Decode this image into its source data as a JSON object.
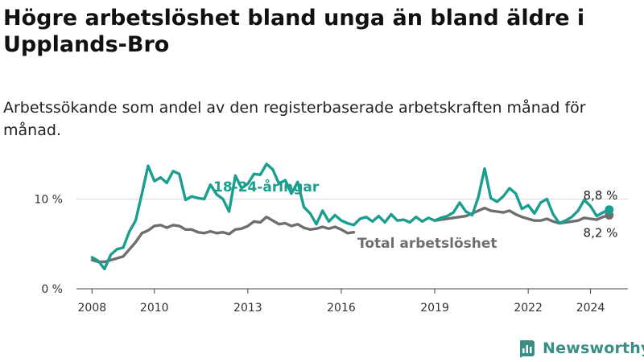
{
  "header": {
    "title": "Högre arbetslöshet bland unga än bland äldre i Upplands-Bro",
    "subtitle": "Arbetssökande som andel av den registerbaserade arbetskraften månad för månad."
  },
  "brand": {
    "name": "Newsworthy"
  },
  "colors": {
    "youth": "#1a9e8f",
    "total": "#6e6e6e",
    "grid": "#d9d9d9",
    "axis": "#444444"
  },
  "chart_data": {
    "type": "line",
    "title": "Högre arbetslöshet bland unga än bland äldre i Upplands-Bro",
    "xlabel": "",
    "ylabel": "",
    "xlim": [
      2007.5,
      2025.2
    ],
    "ylim": [
      0,
      13.8
    ],
    "x_ticks": [
      {
        "value": 2008,
        "label": "2008"
      },
      {
        "value": 2010,
        "label": "2010"
      },
      {
        "value": 2013,
        "label": "2013"
      },
      {
        "value": 2016,
        "label": "2016"
      },
      {
        "value": 2019,
        "label": "2019"
      },
      {
        "value": 2022,
        "label": "2022"
      },
      {
        "value": 2024,
        "label": "2024"
      }
    ],
    "y_ticks": [
      {
        "value": 0,
        "label": "0 %"
      },
      {
        "value": 10,
        "label": "10 %"
      }
    ],
    "grid": true,
    "series": [
      {
        "name": "18-24-åringar",
        "label": "18-24-åringar",
        "color": "#1a9e8f",
        "end_label": "8,8 %",
        "points": [
          [
            2008.0,
            3.5
          ],
          [
            2008.2,
            3.1
          ],
          [
            2008.4,
            2.2
          ],
          [
            2008.6,
            3.8
          ],
          [
            2008.8,
            4.4
          ],
          [
            2009.0,
            4.6
          ],
          [
            2009.2,
            6.4
          ],
          [
            2009.4,
            7.6
          ],
          [
            2009.6,
            10.6
          ],
          [
            2009.8,
            13.7
          ],
          [
            2010.0,
            12.0
          ],
          [
            2010.2,
            12.4
          ],
          [
            2010.4,
            11.8
          ],
          [
            2010.6,
            13.1
          ],
          [
            2010.8,
            12.8
          ],
          [
            2011.0,
            9.9
          ],
          [
            2011.2,
            10.3
          ],
          [
            2011.4,
            10.1
          ],
          [
            2011.6,
            10.0
          ],
          [
            2011.8,
            11.6
          ],
          [
            2012.0,
            10.5
          ],
          [
            2012.2,
            10.0
          ],
          [
            2012.4,
            8.6
          ],
          [
            2012.6,
            12.6
          ],
          [
            2012.8,
            11.2
          ],
          [
            2013.0,
            11.7
          ],
          [
            2013.2,
            12.8
          ],
          [
            2013.4,
            12.7
          ],
          [
            2013.6,
            13.9
          ],
          [
            2013.8,
            13.3
          ],
          [
            2014.0,
            11.7
          ],
          [
            2014.2,
            12.1
          ],
          [
            2014.4,
            10.6
          ],
          [
            2014.6,
            11.9
          ],
          [
            2014.8,
            9.1
          ],
          [
            2015.0,
            8.4
          ],
          [
            2015.2,
            7.2
          ],
          [
            2015.4,
            8.7
          ],
          [
            2015.6,
            7.5
          ],
          [
            2015.8,
            8.2
          ],
          [
            2016.0,
            7.6
          ],
          [
            2016.2,
            7.3
          ],
          [
            2016.4,
            7.1
          ],
          [
            2016.6,
            7.8
          ],
          [
            2016.8,
            8.0
          ],
          [
            2017.0,
            7.5
          ],
          [
            2017.2,
            8.1
          ],
          [
            2017.4,
            7.4
          ],
          [
            2017.6,
            8.3
          ],
          [
            2017.8,
            7.6
          ],
          [
            2018.0,
            7.7
          ],
          [
            2018.2,
            7.4
          ],
          [
            2018.4,
            8.0
          ],
          [
            2018.6,
            7.5
          ],
          [
            2018.8,
            7.9
          ],
          [
            2019.0,
            7.6
          ],
          [
            2019.2,
            7.9
          ],
          [
            2019.4,
            8.1
          ],
          [
            2019.6,
            8.5
          ],
          [
            2019.8,
            9.6
          ],
          [
            2020.0,
            8.6
          ],
          [
            2020.2,
            8.2
          ],
          [
            2020.4,
            10.2
          ],
          [
            2020.6,
            13.4
          ],
          [
            2020.8,
            10.1
          ],
          [
            2021.0,
            9.7
          ],
          [
            2021.2,
            10.3
          ],
          [
            2021.4,
            11.2
          ],
          [
            2021.6,
            10.6
          ],
          [
            2021.8,
            8.9
          ],
          [
            2022.0,
            9.3
          ],
          [
            2022.2,
            8.4
          ],
          [
            2022.4,
            9.6
          ],
          [
            2022.6,
            10.0
          ],
          [
            2022.8,
            8.3
          ],
          [
            2023.0,
            7.3
          ],
          [
            2023.2,
            7.6
          ],
          [
            2023.4,
            8.0
          ],
          [
            2023.6,
            8.7
          ],
          [
            2023.8,
            9.9
          ],
          [
            2024.0,
            9.2
          ],
          [
            2024.2,
            8.1
          ],
          [
            2024.4,
            8.5
          ],
          [
            2024.6,
            8.8
          ]
        ]
      },
      {
        "name": "Total arbetslöshet",
        "label": "Total arbetslöshet",
        "color": "#6e6e6e",
        "end_label": "8,2 %",
        "points": [
          [
            2008.0,
            3.2
          ],
          [
            2008.2,
            3.0
          ],
          [
            2008.4,
            3.0
          ],
          [
            2008.6,
            3.2
          ],
          [
            2008.8,
            3.4
          ],
          [
            2009.0,
            3.6
          ],
          [
            2009.2,
            4.4
          ],
          [
            2009.4,
            5.2
          ],
          [
            2009.6,
            6.2
          ],
          [
            2009.8,
            6.5
          ],
          [
            2010.0,
            7.0
          ],
          [
            2010.2,
            7.1
          ],
          [
            2010.4,
            6.8
          ],
          [
            2010.6,
            7.1
          ],
          [
            2010.8,
            7.0
          ],
          [
            2011.0,
            6.6
          ],
          [
            2011.2,
            6.6
          ],
          [
            2011.4,
            6.3
          ],
          [
            2011.6,
            6.2
          ],
          [
            2011.8,
            6.4
          ],
          [
            2012.0,
            6.2
          ],
          [
            2012.2,
            6.3
          ],
          [
            2012.4,
            6.1
          ],
          [
            2012.6,
            6.6
          ],
          [
            2012.8,
            6.7
          ],
          [
            2013.0,
            7.0
          ],
          [
            2013.2,
            7.5
          ],
          [
            2013.4,
            7.4
          ],
          [
            2013.6,
            8.0
          ],
          [
            2013.8,
            7.6
          ],
          [
            2014.0,
            7.2
          ],
          [
            2014.2,
            7.3
          ],
          [
            2014.4,
            7.0
          ],
          [
            2014.6,
            7.2
          ],
          [
            2014.8,
            6.8
          ],
          [
            2015.0,
            6.6
          ],
          [
            2015.2,
            6.7
          ],
          [
            2015.4,
            6.9
          ],
          [
            2015.6,
            6.7
          ],
          [
            2015.8,
            6.9
          ],
          [
            2016.0,
            6.6
          ],
          [
            2016.2,
            6.2
          ],
          [
            2016.4,
            6.3
          ],
          [
            2019.0,
            7.6
          ],
          [
            2019.2,
            7.7
          ],
          [
            2019.4,
            7.8
          ],
          [
            2019.6,
            7.9
          ],
          [
            2019.8,
            8.0
          ],
          [
            2020.0,
            8.1
          ],
          [
            2020.2,
            8.4
          ],
          [
            2020.4,
            8.7
          ],
          [
            2020.6,
            9.0
          ],
          [
            2020.8,
            8.7
          ],
          [
            2021.0,
            8.6
          ],
          [
            2021.2,
            8.5
          ],
          [
            2021.4,
            8.7
          ],
          [
            2021.6,
            8.3
          ],
          [
            2021.8,
            8.0
          ],
          [
            2022.0,
            7.8
          ],
          [
            2022.2,
            7.6
          ],
          [
            2022.4,
            7.6
          ],
          [
            2022.6,
            7.8
          ],
          [
            2022.8,
            7.5
          ],
          [
            2023.0,
            7.3
          ],
          [
            2023.2,
            7.4
          ],
          [
            2023.4,
            7.5
          ],
          [
            2023.6,
            7.6
          ],
          [
            2023.8,
            7.9
          ],
          [
            2024.0,
            7.8
          ],
          [
            2024.2,
            7.7
          ],
          [
            2024.4,
            8.0
          ],
          [
            2024.6,
            8.2
          ]
        ]
      }
    ]
  }
}
